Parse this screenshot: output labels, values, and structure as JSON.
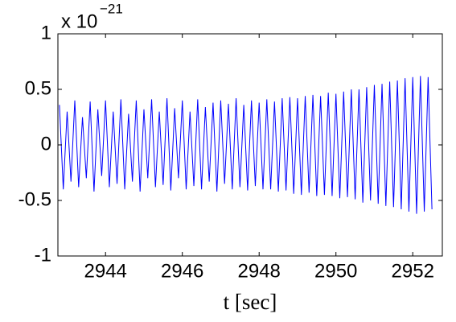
{
  "chart_data": {
    "type": "line",
    "multiplier": {
      "base": "x 10",
      "exponent": "−21"
    },
    "xlabel": "t [sec]",
    "x": [
      2942.8,
      2942.9,
      2943.0,
      2943.1,
      2943.2,
      2943.3,
      2943.4,
      2943.5,
      2943.6,
      2943.7,
      2943.8,
      2943.9,
      2944.0,
      2944.1,
      2944.2,
      2944.3,
      2944.4,
      2944.5,
      2944.6,
      2944.7,
      2944.8,
      2944.9,
      2945.0,
      2945.1,
      2945.2,
      2945.3,
      2945.4,
      2945.5,
      2945.6,
      2945.7,
      2945.8,
      2945.9,
      2946.0,
      2946.1,
      2946.2,
      2946.3,
      2946.4,
      2946.5,
      2946.6,
      2946.7,
      2946.8,
      2946.9,
      2947.0,
      2947.1,
      2947.2,
      2947.3,
      2947.4,
      2947.5,
      2947.6,
      2947.7,
      2947.8,
      2947.9,
      2948.0,
      2948.1,
      2948.2,
      2948.3,
      2948.4,
      2948.5,
      2948.6,
      2948.7,
      2948.8,
      2948.9,
      2949.0,
      2949.1,
      2949.2,
      2949.3,
      2949.4,
      2949.5,
      2949.6,
      2949.7,
      2949.8,
      2949.9,
      2950.0,
      2950.1,
      2950.2,
      2950.3,
      2950.4,
      2950.5,
      2950.6,
      2950.7,
      2950.8,
      2950.9,
      2951.0,
      2951.1,
      2951.2,
      2951.3,
      2951.4,
      2951.5,
      2951.6,
      2951.7,
      2951.8,
      2951.9,
      2952.0,
      2952.1,
      2952.2,
      2952.3,
      2952.4,
      2952.5
    ],
    "series": [
      {
        "color": "#0000ff",
        "values": [
          0.36,
          -0.4,
          0.3,
          -0.33,
          0.4,
          -0.38,
          0.25,
          -0.3,
          0.39,
          -0.42,
          0.32,
          -0.28,
          0.4,
          -0.38,
          0.3,
          -0.35,
          0.41,
          -0.4,
          0.28,
          -0.33,
          0.4,
          -0.42,
          0.32,
          -0.3,
          0.41,
          -0.38,
          0.3,
          -0.36,
          0.42,
          -0.41,
          0.33,
          -0.3,
          0.4,
          -0.4,
          0.3,
          -0.37,
          0.41,
          -0.4,
          0.34,
          -0.33,
          0.38,
          -0.42,
          0.4,
          -0.35,
          0.37,
          -0.4,
          0.42,
          -0.38,
          0.36,
          -0.41,
          0.4,
          -0.37,
          0.38,
          -0.4,
          0.41,
          -0.4,
          0.39,
          -0.42,
          0.42,
          -0.41,
          0.43,
          -0.44,
          0.42,
          -0.45,
          0.44,
          -0.43,
          0.45,
          -0.46,
          0.44,
          -0.45,
          0.47,
          -0.46,
          0.46,
          -0.48,
          0.48,
          -0.47,
          0.5,
          -0.49,
          0.5,
          -0.52,
          0.52,
          -0.5,
          0.54,
          -0.53,
          0.55,
          -0.55,
          0.57,
          -0.56,
          0.58,
          -0.58,
          0.6,
          -0.6,
          0.61,
          -0.62,
          0.62,
          -0.6,
          0.61,
          -0.58
        ]
      }
    ],
    "xlim": [
      2942.76,
      2952.77
    ],
    "ylim": [
      -1,
      1
    ],
    "xticks": [
      2944,
      2946,
      2948,
      2950,
      2952
    ],
    "yticks": [
      -1,
      -0.5,
      0,
      0.5,
      1
    ]
  }
}
